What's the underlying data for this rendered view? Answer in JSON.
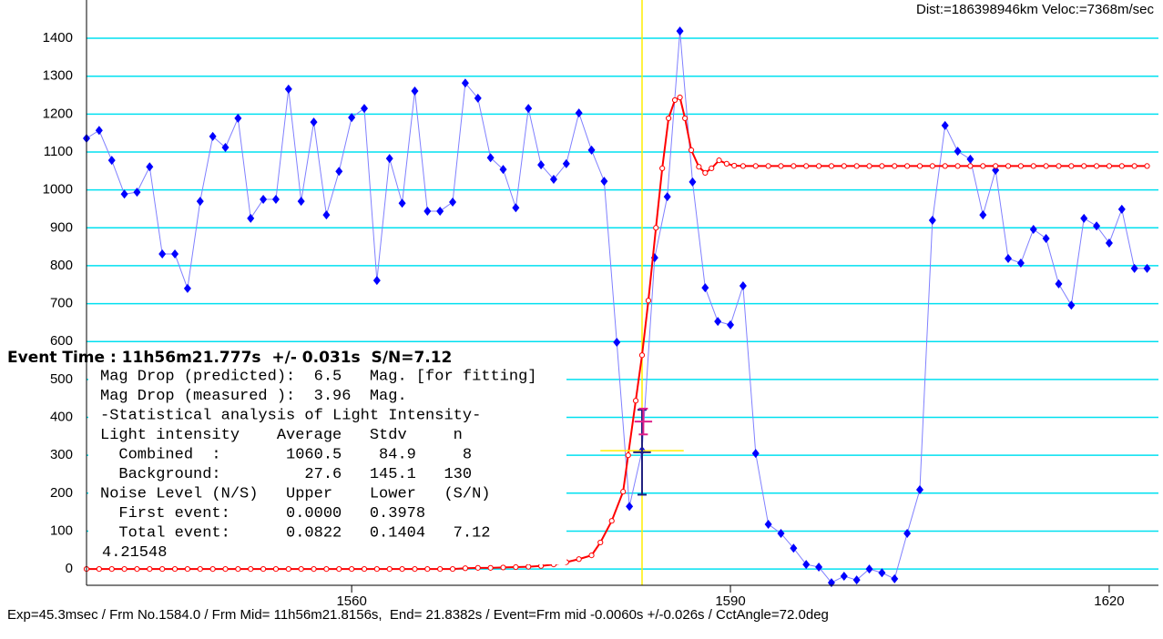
{
  "chart_data": {
    "type": "line",
    "header": "Dist:=186398946km Veloc:=7368m/sec",
    "footer": "Exp=45.3msec / Frm No.1584.0 / Frm Mid= 11h56m21.8156s,  End= 21.8382s / Event=Frm mid -0.0060s +/-0.026s / CctAngle=72.0deg",
    "event_text": "Event Time : 11h56m21.777s  +/- 0.031s  S/N=7.12",
    "stats_lines": [
      "Mag Drop (predicted):  6.5   Mag. [for fitting]",
      "Mag Drop (measured ):  3.96  Mag.",
      "-Statistical analysis of Light Intensity-",
      "Light intensity    Average   Stdv     n",
      "  Combined  :       1060.5    84.9     8",
      "  Background:         27.6   145.1   130",
      "Noise Level (N/S)   Upper    Lower   (S/N)",
      "  First event:      0.0000   0.3978",
      "  Total event:      0.0822   0.1404   7.12",
      "4.21548"
    ],
    "xlim": [
      1539,
      1623.9
    ],
    "xticks": [
      1560,
      1590,
      1620
    ],
    "ylim": [
      -43,
      1501
    ],
    "yticks": [
      0,
      100,
      200,
      300,
      400,
      500,
      600,
      700,
      800,
      900,
      1000,
      1100,
      1200,
      1300,
      1400
    ],
    "grid": true,
    "grid_color": "#00e0f0",
    "event_frame": 1583.0,
    "event_color": "#ffee00",
    "event_range": {
      "x": 1583.0,
      "y": 312,
      "xerr": 3.3
    },
    "event_marker": {
      "x": 1583.1,
      "y": 389,
      "yerr": 34,
      "xerr": 0.7,
      "color": "#e0208a"
    },
    "event_point": {
      "x": 1583.0,
      "y": 308,
      "yerr": 112,
      "xerr": 0.7,
      "color": "#202080"
    },
    "series": [
      {
        "name": "measured",
        "color": "#8080ff",
        "marker_color": "#0000ff",
        "x": [
          1539,
          1540,
          1541,
          1542,
          1543,
          1544,
          1545,
          1546,
          1547,
          1548,
          1549,
          1550,
          1551,
          1552,
          1553,
          1554,
          1555,
          1556,
          1557,
          1558,
          1559,
          1560,
          1561,
          1562,
          1563,
          1564,
          1565,
          1566,
          1567,
          1568,
          1569,
          1570,
          1571,
          1572,
          1573,
          1574,
          1575,
          1576,
          1577,
          1578,
          1579,
          1580,
          1581,
          1582,
          1583,
          1584,
          1585,
          1586,
          1587,
          1588,
          1589,
          1590,
          1591,
          1592,
          1593,
          1594,
          1595,
          1596,
          1597,
          1598,
          1599,
          1600,
          1601,
          1602,
          1603,
          1604,
          1605,
          1606,
          1607,
          1608,
          1609,
          1610,
          1611,
          1612,
          1613,
          1614,
          1615,
          1616,
          1617,
          1618,
          1619,
          1620,
          1621,
          1622,
          1623
        ],
        "values": [
          1136,
          1157,
          1078,
          989,
          994,
          1061,
          831,
          831,
          740,
          970,
          1141,
          1112,
          1189,
          925,
          975,
          975,
          1266,
          970,
          1179,
          934,
          1049,
          1191,
          1215,
          761,
          1083,
          965,
          1261,
          944,
          944,
          968,
          1282,
          1242,
          1085,
          1054,
          953,
          1215,
          1066,
          1028,
          1069,
          1203,
          1105,
          1023,
          598,
          165,
          312,
          821,
          982,
          1419,
          1021,
          742,
          653,
          644,
          747,
          305,
          118,
          94,
          55,
          12,
          5,
          -36,
          -19,
          -29,
          0,
          -10,
          -26,
          94,
          209,
          920,
          1170,
          1102,
          1081,
          934,
          1052,
          819,
          807,
          896,
          872,
          752,
          696,
          925,
          905,
          860,
          949,
          793,
          793
        ]
      },
      {
        "name": "fit",
        "color": "#ff0000",
        "marker_color": "#ff0000",
        "x": [
          1539,
          1540,
          1541,
          1542,
          1543,
          1544,
          1545,
          1546,
          1547,
          1548,
          1549,
          1550,
          1551,
          1552,
          1553,
          1554,
          1555,
          1556,
          1557,
          1558,
          1559,
          1560,
          1561,
          1562,
          1563,
          1564,
          1565,
          1566,
          1567,
          1568,
          1569,
          1570,
          1571,
          1572,
          1573,
          1574,
          1575,
          1576,
          1577,
          1578,
          1579.0,
          1579.7,
          1580.6,
          1581.5,
          1581.9,
          1582.5,
          1583.0,
          1583.5,
          1584.1,
          1584.6,
          1585.1,
          1585.6,
          1586.0,
          1586.4,
          1586.9,
          1587.5,
          1588.0,
          1588.5,
          1589.1,
          1589.7,
          1590.3,
          1591,
          1592,
          1593,
          1594,
          1595,
          1596,
          1597,
          1598,
          1599,
          1600,
          1601,
          1602,
          1603,
          1604,
          1605,
          1606,
          1607,
          1608,
          1609,
          1610,
          1611,
          1612,
          1613,
          1614,
          1615,
          1616,
          1617,
          1618,
          1619,
          1620,
          1621,
          1622,
          1623
        ],
        "values": [
          0,
          0,
          0,
          0,
          0,
          0,
          0,
          0,
          0,
          0,
          0,
          0,
          0,
          0,
          0,
          0,
          0,
          0,
          0,
          0,
          0,
          0,
          0,
          0,
          0,
          0,
          0,
          0,
          0,
          0,
          2,
          3,
          3,
          4,
          5,
          6,
          8,
          12,
          18,
          26,
          36,
          70,
          127,
          204,
          300,
          444,
          564,
          708,
          900,
          1057,
          1189,
          1237,
          1244,
          1189,
          1105,
          1061,
          1045,
          1057,
          1078,
          1069,
          1064,
          1063,
          1063,
          1063,
          1063,
          1063,
          1063,
          1063,
          1063,
          1063,
          1063,
          1063,
          1063,
          1063,
          1063,
          1063,
          1063,
          1063,
          1063,
          1063,
          1063,
          1063,
          1063,
          1063,
          1063,
          1063,
          1063,
          1063,
          1063,
          1063,
          1063,
          1063,
          1063,
          1063
        ]
      }
    ]
  }
}
